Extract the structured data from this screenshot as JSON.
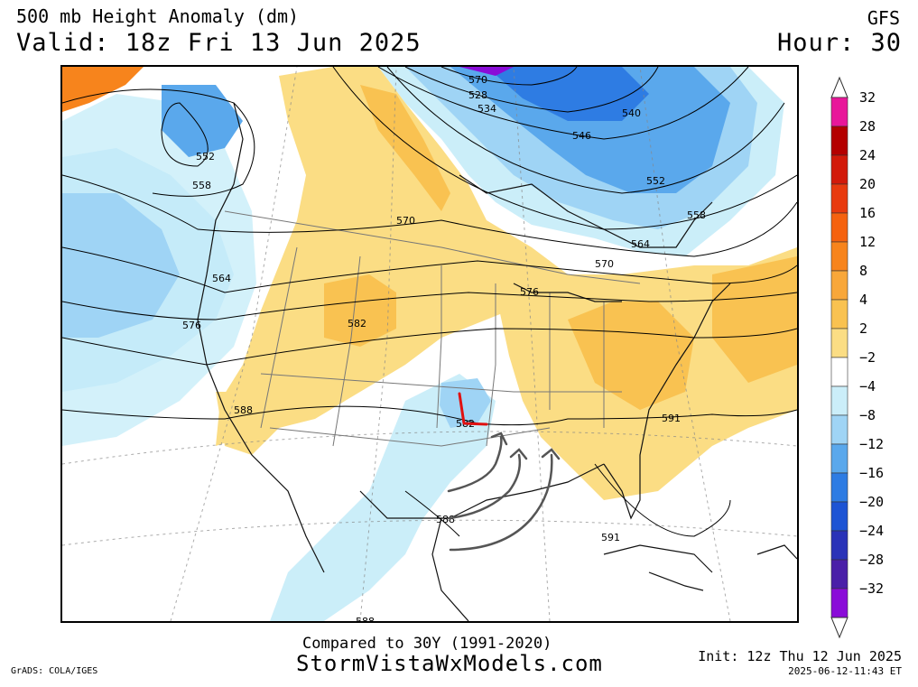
{
  "header": {
    "title": "500 mb Height Anomaly (dm)",
    "valid": "Valid: 18z Fri 13 Jun 2025",
    "model": "GFS",
    "hour": "Hour: 30"
  },
  "footer": {
    "compared": "Compared to 30Y (1991-2020)",
    "site": "StormVistaWxModels.com",
    "grads": "GrADS: COLA/IGES",
    "init": "Init: 12z Thu 12 Jun 2025",
    "timestamp": "2025-06-12-11:43 ET"
  },
  "colorbar": {
    "labels": [
      "32",
      "28",
      "24",
      "20",
      "16",
      "12",
      "8",
      "4",
      "2",
      "−2",
      "−4",
      "−8",
      "−12",
      "−16",
      "−20",
      "−24",
      "−28",
      "−32"
    ],
    "colors": [
      "#e8179a",
      "#b40000",
      "#d21a0a",
      "#e83a0e",
      "#f5620f",
      "#f7841c",
      "#f8a73a",
      "#f9c251",
      "#fbdd84",
      "#ffffff",
      "#cbeef9",
      "#9fd4f5",
      "#5aa8ec",
      "#2e7ce3",
      "#1d54d4",
      "#2a33b8",
      "#4a1fa8",
      "#8a0cd8"
    ]
  },
  "contour_labels": [
    "570",
    "528",
    "534",
    "540",
    "546",
    "552",
    "558",
    "552",
    "558",
    "564",
    "570",
    "576",
    "564",
    "570",
    "576",
    "582",
    "588",
    "591",
    "588",
    "591",
    "582",
    "588"
  ],
  "colors": {
    "positive": "#fbdd84",
    "positive_strong": "#f9c251",
    "negative": "#9fd4f5",
    "negative_strong": "#2e7ce3",
    "annotation_low": "#e01010",
    "annotation_arrows": "#555555"
  }
}
